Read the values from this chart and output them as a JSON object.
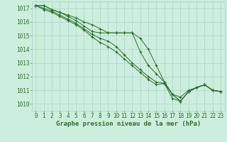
{
  "title": "Graphe pression niveau de la mer (hPa)",
  "bg_color": "#cceedd",
  "grid_color": "#aacccc",
  "line_color": "#2d6e2d",
  "xlim": [
    -0.5,
    23.5
  ],
  "ylim": [
    1009.5,
    1017.5
  ],
  "yticks": [
    1010,
    1011,
    1012,
    1013,
    1014,
    1015,
    1016,
    1017
  ],
  "xticks": [
    0,
    1,
    2,
    3,
    4,
    5,
    6,
    7,
    8,
    9,
    10,
    11,
    12,
    13,
    14,
    15,
    16,
    17,
    18,
    19,
    20,
    21,
    22,
    23
  ],
  "series": [
    [
      1017.2,
      1017.2,
      1016.9,
      1016.7,
      1016.5,
      1016.3,
      1016.0,
      1015.8,
      1015.5,
      1015.2,
      1015.2,
      1015.2,
      1015.2,
      1013.8,
      1012.8,
      1012.2,
      1011.6,
      1010.7,
      1010.5,
      1011.0,
      1011.2,
      1011.4,
      1011.0,
      1010.9
    ],
    [
      1017.2,
      1017.2,
      1016.9,
      1016.7,
      1016.4,
      1016.1,
      1015.7,
      1015.3,
      1015.2,
      1015.2,
      1015.2,
      1015.2,
      1015.2,
      1014.8,
      1014.0,
      1012.8,
      1011.6,
      1010.7,
      1010.2,
      1010.9,
      1011.2,
      1011.4,
      1011.0,
      1010.9
    ],
    [
      1017.2,
      1017.0,
      1016.8,
      1016.5,
      1016.2,
      1015.9,
      1015.5,
      1015.1,
      1014.8,
      1014.6,
      1014.2,
      1013.6,
      1013.0,
      1012.5,
      1012.0,
      1011.6,
      1011.5,
      1010.7,
      1010.2,
      1010.9,
      1011.2,
      1011.4,
      1011.0,
      1010.9
    ],
    [
      1017.2,
      1016.9,
      1016.7,
      1016.4,
      1016.1,
      1015.8,
      1015.4,
      1014.9,
      1014.5,
      1014.2,
      1013.8,
      1013.3,
      1012.8,
      1012.3,
      1011.8,
      1011.4,
      1011.5,
      1010.4,
      1010.2,
      1010.9,
      1011.2,
      1011.4,
      1011.0,
      1010.9
    ]
  ],
  "tick_fontsize": 5.5,
  "label_fontsize": 6.5
}
